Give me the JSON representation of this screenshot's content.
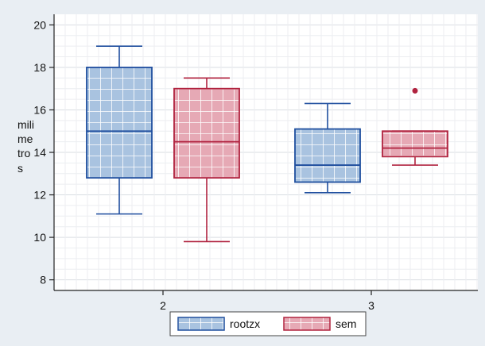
{
  "chart_data": {
    "type": "box",
    "title": "",
    "xlabel": "",
    "ylabel": "milimetros",
    "ylim": [
      7.5,
      20.5
    ],
    "yticks": [
      8,
      10,
      12,
      14,
      16,
      18,
      20
    ],
    "grid": true,
    "legend_position": "bottom-center",
    "categories": [
      "2",
      "3"
    ],
    "series": [
      {
        "name": "rootzx",
        "color": "#1f4e9e",
        "fill": "#a9c3e0",
        "boxes": [
          {
            "category": "2",
            "whisker_low": 11.1,
            "q1": 12.8,
            "median": 15.0,
            "q3": 18.0,
            "whisker_high": 19.0,
            "outliers": []
          },
          {
            "category": "3",
            "whisker_low": 12.1,
            "q1": 12.6,
            "median": 13.4,
            "q3": 15.1,
            "whisker_high": 16.3,
            "outliers": []
          }
        ]
      },
      {
        "name": "sem",
        "color": "#b0233f",
        "fill": "#e6a9b5",
        "boxes": [
          {
            "category": "2",
            "whisker_low": 9.8,
            "q1": 12.8,
            "median": 14.5,
            "q3": 17.0,
            "whisker_high": 17.5,
            "outliers": []
          },
          {
            "category": "3",
            "whisker_low": 13.4,
            "q1": 13.8,
            "median": 14.2,
            "q3": 15.0,
            "whisker_high": 15.0,
            "outliers": [
              16.9
            ]
          }
        ]
      }
    ]
  },
  "ylabel_lines": [
    "mili",
    "me",
    "tro",
    "s"
  ]
}
